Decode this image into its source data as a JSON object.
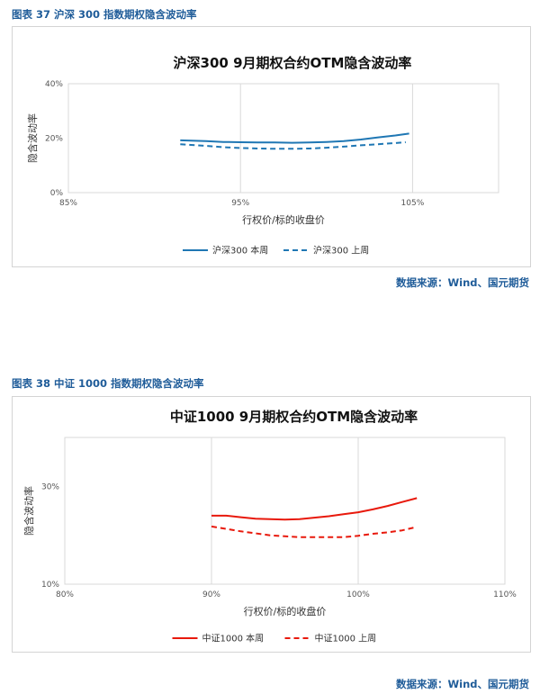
{
  "fig1": {
    "heading": "图表 37 沪深 300 指数期权隐含波动率",
    "source": "数据来源：Wind、国元期货"
  },
  "fig2": {
    "heading": "图表 38 中证 1000 指数期权隐含波动率",
    "source": "数据来源：Wind、国元期货"
  },
  "chart_data": [
    {
      "type": "line",
      "title": "沪深300 9月期权合约OTM隐含波动率",
      "xlabel": "行权价/标的收盘价",
      "ylabel": "隐含波动率",
      "xlim": [
        85,
        110
      ],
      "ylim": [
        0,
        40
      ],
      "x_ticks": [
        85,
        95,
        105
      ],
      "x_tick_labels": [
        "85%",
        "95%",
        "105%"
      ],
      "y_ticks": [
        0,
        20,
        40
      ],
      "y_tick_labels": [
        "0%",
        "20%",
        "40%"
      ],
      "grid": "vertical",
      "legend": "bottom",
      "series": [
        {
          "name": "沪深300 本周",
          "color": "#1f77b4",
          "dash": "solid",
          "x": [
            91.5,
            93,
            94,
            95,
            96,
            97,
            98,
            99,
            100,
            101,
            102,
            103,
            104,
            104.8
          ],
          "values": [
            19.2,
            18.9,
            18.6,
            18.5,
            18.4,
            18.4,
            18.3,
            18.4,
            18.6,
            18.9,
            19.5,
            20.3,
            21.0,
            21.7
          ]
        },
        {
          "name": "沪深300 上周",
          "color": "#1f77b4",
          "dash": "dashed",
          "x": [
            91.5,
            93,
            94,
            95,
            96,
            97,
            98,
            99,
            100,
            101,
            102,
            103,
            104,
            104.6
          ],
          "values": [
            17.8,
            17.2,
            16.7,
            16.4,
            16.2,
            16.1,
            16.1,
            16.2,
            16.5,
            16.9,
            17.4,
            17.8,
            18.2,
            18.5
          ]
        }
      ]
    },
    {
      "type": "line",
      "title": "中证1000 9月期权合约OTM隐含波动率",
      "xlabel": "行权价/标的收盘价",
      "ylabel": "隐含波动率",
      "xlim": [
        80,
        110
      ],
      "ylim": [
        10,
        40
      ],
      "x_ticks": [
        80,
        90,
        100,
        110
      ],
      "x_tick_labels": [
        "80%",
        "90%",
        "100%",
        "110%"
      ],
      "y_ticks": [
        10,
        30
      ],
      "y_tick_labels": [
        "10%",
        "30%"
      ],
      "grid": "vertical",
      "legend": "bottom",
      "series": [
        {
          "name": "中证1000 本周",
          "color": "#e8190c",
          "dash": "solid",
          "x": [
            90,
            91,
            92,
            93,
            94,
            95,
            96,
            97,
            98,
            99,
            100,
            101,
            102,
            103,
            104
          ],
          "values": [
            24.0,
            24.0,
            23.7,
            23.4,
            23.3,
            23.2,
            23.3,
            23.6,
            23.9,
            24.3,
            24.7,
            25.3,
            26.0,
            26.8,
            27.6
          ]
        },
        {
          "name": "中证1000 上周",
          "color": "#e8190c",
          "dash": "dashed",
          "x": [
            90,
            91,
            92,
            93,
            94,
            95,
            96,
            97,
            98,
            99,
            100,
            101,
            102,
            103,
            104
          ],
          "values": [
            21.8,
            21.3,
            20.8,
            20.4,
            20.0,
            19.8,
            19.6,
            19.6,
            19.6,
            19.6,
            19.9,
            20.3,
            20.6,
            21.0,
            21.7
          ]
        }
      ]
    }
  ]
}
